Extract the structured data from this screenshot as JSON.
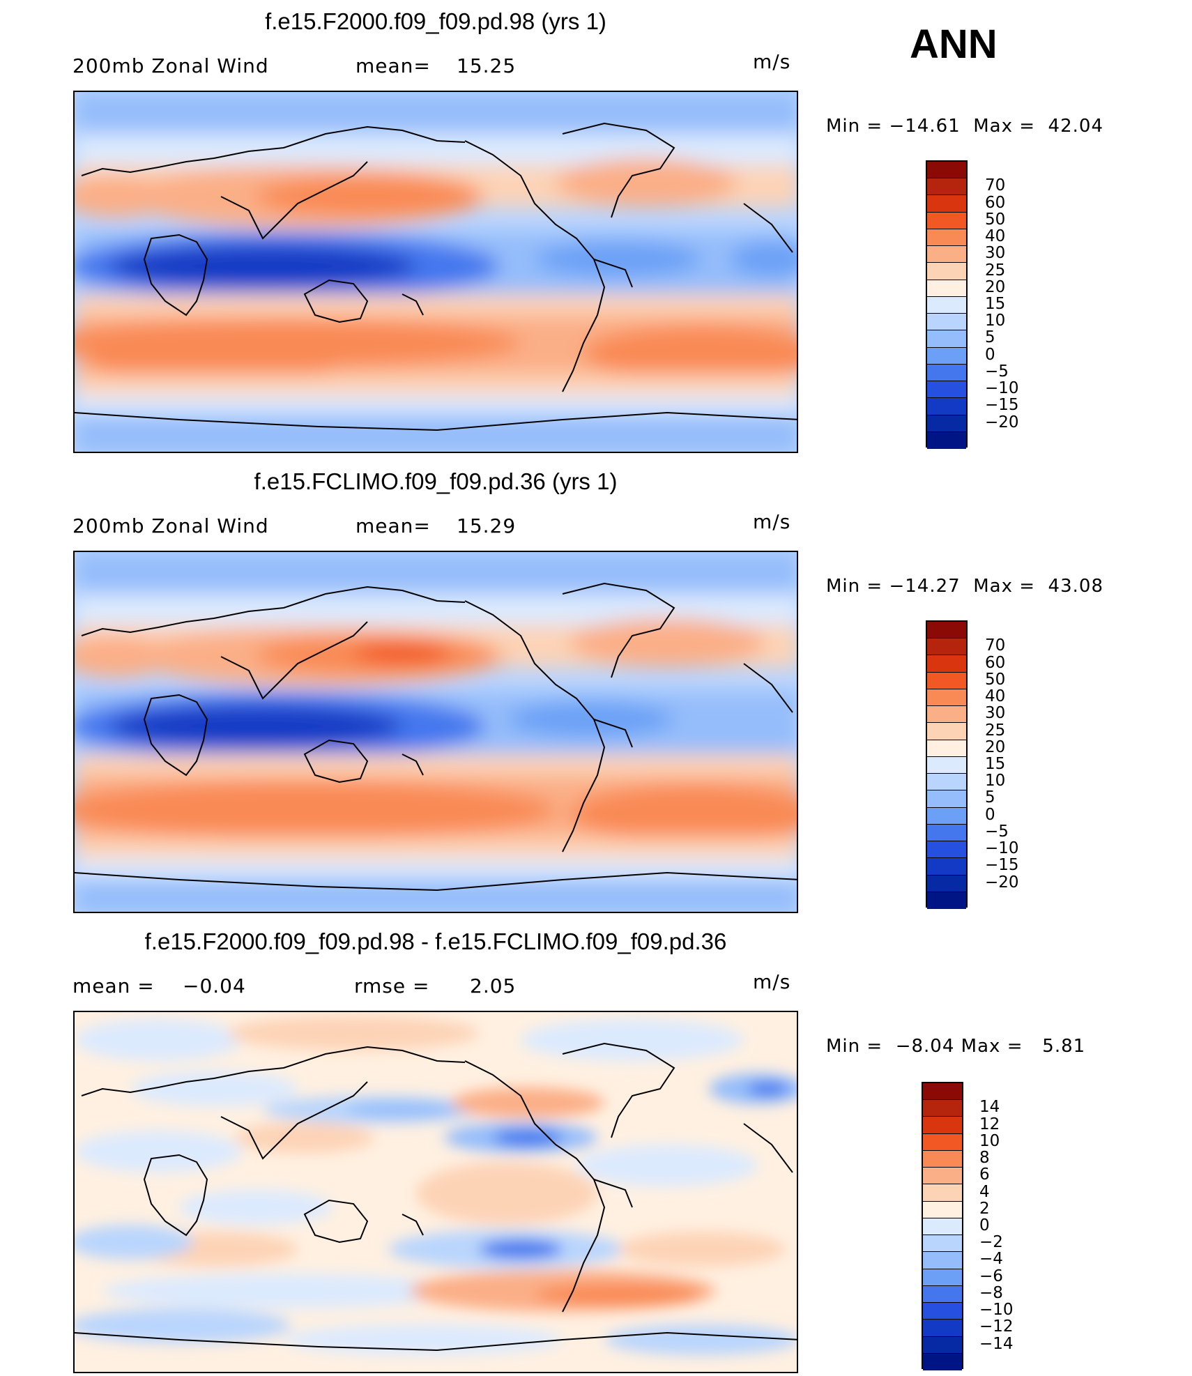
{
  "season": "ANN",
  "units": "m/s",
  "panels": [
    {
      "title": "f.e15.F2000.f09_f09.pd.98 (yrs 1)",
      "left_label": "200mb Zonal Wind",
      "stat_label": "mean=",
      "stat_value": "15.25",
      "units": "m/s",
      "min_label": "Min =",
      "min_value": "−14.61",
      "max_label": "Max =",
      "max_value": "42.04"
    },
    {
      "title": "f.e15.FCLIMO.f09_f09.pd.36 (yrs 1)",
      "left_label": "200mb Zonal Wind",
      "stat_label": "mean=",
      "stat_value": "15.29",
      "units": "m/s",
      "min_label": "Min =",
      "min_value": "−14.27",
      "max_label": "Max =",
      "max_value": "43.08"
    },
    {
      "title": "f.e15.F2000.f09_f09.pd.98 - f.e15.FCLIMO.f09_f09.pd.36",
      "left_label": "mean =",
      "left_value": "−0.04",
      "stat_label": "rmse =",
      "stat_value": "2.05",
      "units": "m/s",
      "min_label": "Min =",
      "min_value": "−8.04",
      "max_label": "Max =",
      "max_value": "5.81"
    }
  ],
  "colorbars": {
    "wind": {
      "labels": [
        "70",
        "60",
        "50",
        "40",
        "30",
        "25",
        "20",
        "15",
        "10",
        "5",
        "0",
        "−5",
        "−10",
        "−15",
        "−20"
      ],
      "colors": [
        "#8b0a05",
        "#b5240c",
        "#d9360f",
        "#f25824",
        "#f98a55",
        "#fbaf87",
        "#fdd3b6",
        "#fff0e1",
        "#dceafe",
        "#b9d5fd",
        "#95bdfb",
        "#6ba0f6",
        "#4477ee",
        "#2550e0",
        "#123ac4",
        "#062aa3",
        "#001585"
      ]
    },
    "diff": {
      "labels": [
        "14",
        "12",
        "10",
        "8",
        "6",
        "4",
        "2",
        "0",
        "−2",
        "−4",
        "−6",
        "−8",
        "−10",
        "−12",
        "−14"
      ],
      "colors": [
        "#8b0a05",
        "#b5240c",
        "#d9360f",
        "#f25824",
        "#f98a55",
        "#fbaf87",
        "#fdd3b6",
        "#fff0e1",
        "#dceafe",
        "#b9d5fd",
        "#95bdfb",
        "#6ba0f6",
        "#4477ee",
        "#2550e0",
        "#123ac4",
        "#062aa3",
        "#001585"
      ]
    }
  }
}
